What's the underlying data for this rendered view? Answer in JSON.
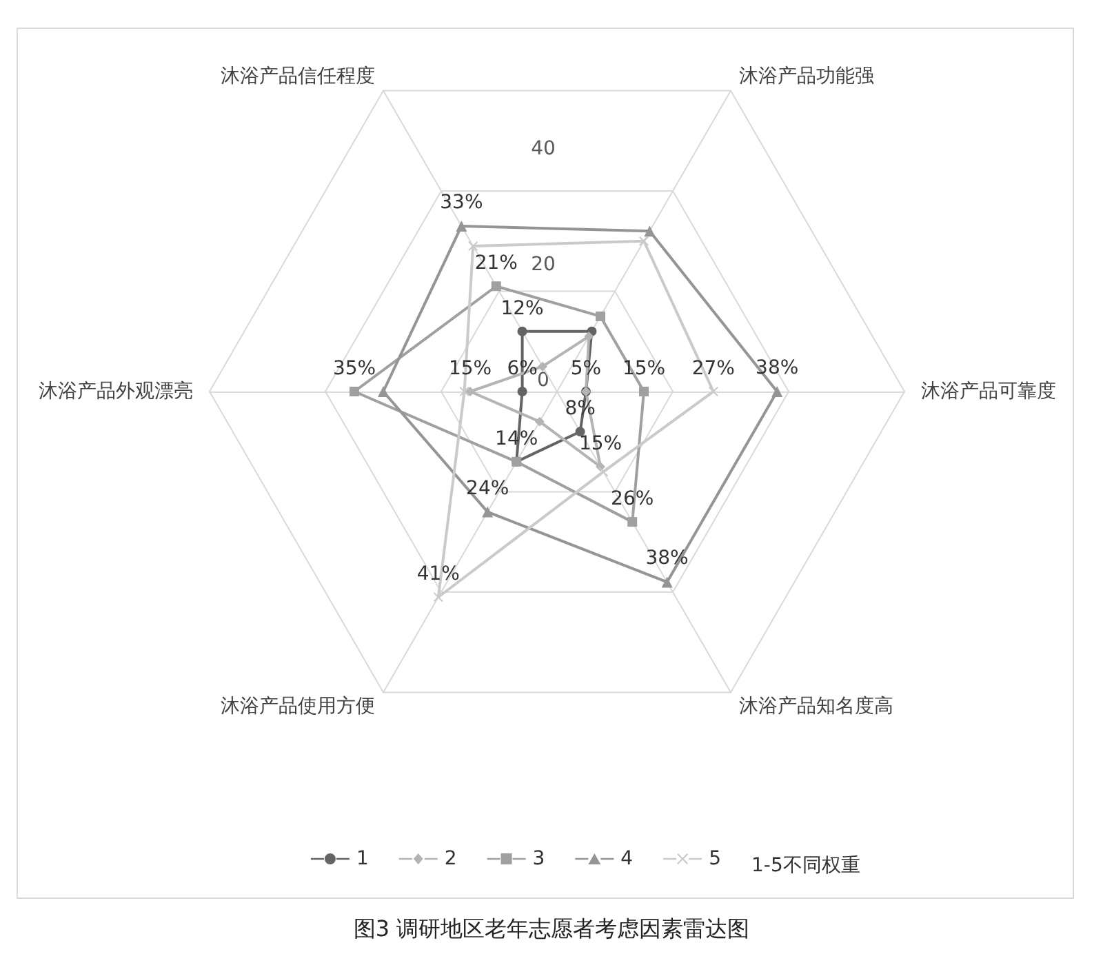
{
  "chart_data": {
    "type": "radar",
    "title": "图3 调研地区老年志愿者考虑因素雷达图",
    "legend_title": "1-5不同权重",
    "categories": [
      "沐浴产品功能强",
      "沐浴产品可靠度",
      "沐浴产品知名度高",
      "沐浴产品使用方便",
      "沐浴产品外观漂亮",
      "沐浴产品信任程度"
    ],
    "ylim": [
      0,
      60
    ],
    "yticks": [
      0,
      20,
      40
    ],
    "grid": true,
    "legend": "bottom",
    "line_style": "solid",
    "series": [
      {
        "name": "1",
        "color": "#646464",
        "marker": "circle",
        "values": [
          12,
          5,
          8,
          14,
          6,
          12
        ],
        "value_labels": [
          null,
          "5%",
          "8%",
          "14%",
          "6%",
          "12%"
        ]
      },
      {
        "name": "2",
        "color": "#b4b4b4",
        "marker": "diamond",
        "values": [
          11,
          5,
          15,
          6,
          15,
          5
        ],
        "value_labels": [
          null,
          null,
          "15%",
          null,
          "15%",
          null
        ]
      },
      {
        "name": "3",
        "color": "#a0a0a0",
        "marker": "square",
        "values": [
          15,
          15,
          26,
          14,
          35,
          21
        ],
        "value_labels": [
          null,
          "15%",
          "26%",
          null,
          "35%",
          "21%"
        ]
      },
      {
        "name": "4",
        "color": "#959595",
        "marker": "triangle",
        "values": [
          32,
          38,
          38,
          24,
          30,
          33
        ],
        "value_labels": [
          null,
          "38%",
          "38%",
          "24%",
          null,
          "33%"
        ]
      },
      {
        "name": "5",
        "color": "#cacaca",
        "marker": "cross",
        "values": [
          30,
          27,
          16,
          41,
          16,
          29
        ],
        "value_labels": [
          null,
          "27%",
          null,
          "41%",
          null,
          null
        ]
      }
    ]
  }
}
